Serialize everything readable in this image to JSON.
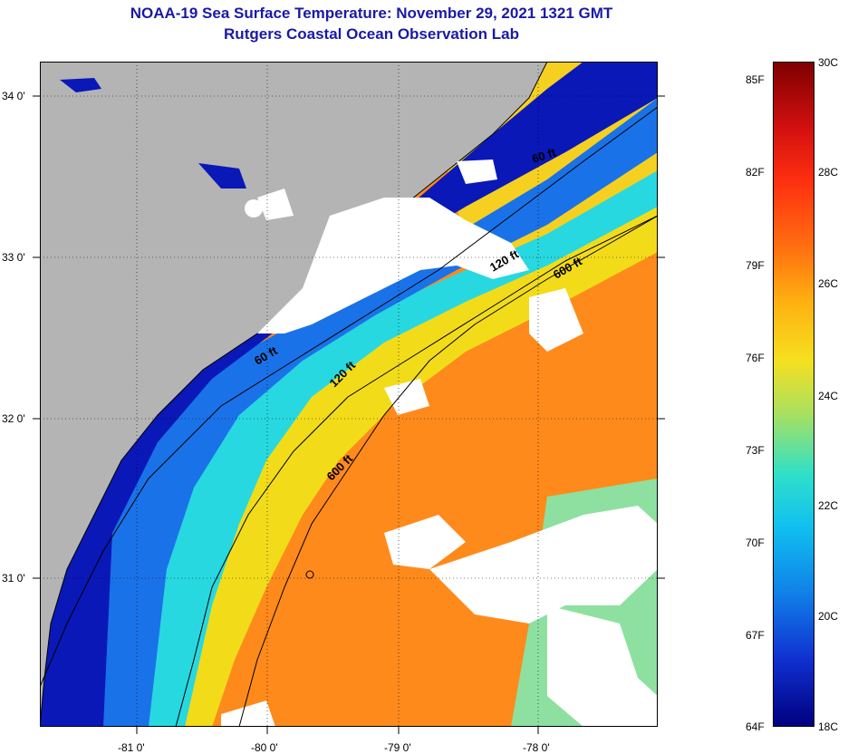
{
  "header": {
    "title_line1": "NOAA-19 Sea Surface Temperature:  November 29, 2021 1321 GMT",
    "title_line2": "Rutgers Coastal Ocean Observation Lab"
  },
  "map": {
    "latitude_labels": [
      "34 0'",
      "33 0'",
      "32 0'",
      "31 0'"
    ],
    "longitude_labels": [
      "-81 0'",
      "-80 0'",
      "-79 0'",
      "-78 0'"
    ],
    "isobath_labels": [
      "60 ft",
      "120 ft",
      "600 ft",
      "60 ft",
      "120 ft",
      "600 ft"
    ]
  },
  "colorbar": {
    "fahrenheit_labels": [
      "85F",
      "82F",
      "79F",
      "76F",
      "73F",
      "70F",
      "67F",
      "64F"
    ],
    "celsius_labels": [
      "30C",
      "28C",
      "26C",
      "24C",
      "22C",
      "20C",
      "18C"
    ],
    "range_celsius": [
      18,
      30
    ]
  },
  "colors": {
    "land": "#b4b4b4",
    "cold": "#00008f",
    "warm": "#ff7a10",
    "hot": "#800000",
    "title": "#1a1aa6"
  }
}
